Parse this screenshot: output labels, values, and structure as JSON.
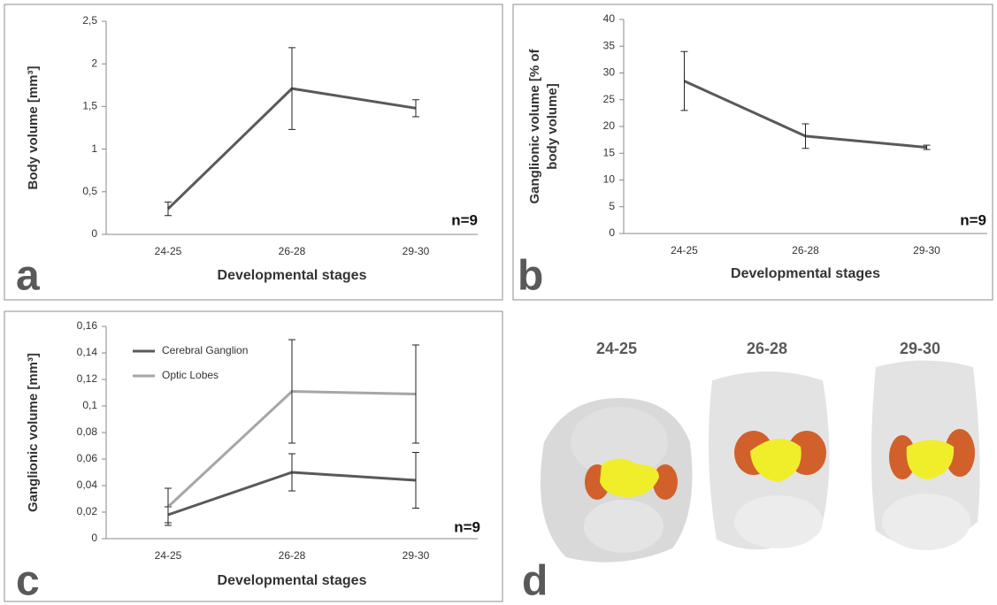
{
  "chart_data": [
    {
      "type": "line",
      "panel_label": "a",
      "ylabel": [
        "Body volume [mm³]"
      ],
      "xlabel": "Developmental stages",
      "annotation": "n=9",
      "categories": [
        "24-25",
        "26-28",
        "29-30"
      ],
      "series": [
        {
          "color": "#595959",
          "values": [
            0.3,
            1.71,
            1.48
          ],
          "errors": [
            0.08,
            0.48,
            0.1
          ]
        }
      ],
      "ylim": [
        0,
        2.5
      ],
      "yticks": [
        0,
        {
          "value": 0.5,
          "label": "0,5"
        },
        1,
        {
          "value": 1.5,
          "label": "1,5"
        },
        2,
        {
          "value": 2.5,
          "label": "2,5"
        }
      ]
    },
    {
      "type": "line",
      "panel_label": "b",
      "ylabel": [
        "Ganglionic volume [% of",
        "body volume]"
      ],
      "xlabel": "Developmental stages",
      "annotation": "n=9",
      "categories": [
        "24-25",
        "26-28",
        "29-30"
      ],
      "series": [
        {
          "color": "#595959",
          "values": [
            28.5,
            18.2,
            16.1
          ],
          "errors": [
            5.5,
            2.3,
            0.4
          ]
        }
      ],
      "ylim": [
        0,
        40
      ],
      "yticks": [
        0,
        5,
        10,
        15,
        20,
        25,
        30,
        35,
        40
      ]
    },
    {
      "type": "line",
      "panel_label": "c",
      "ylabel": [
        "Ganglionic volume [mm³]"
      ],
      "xlabel": "Developmental stages",
      "annotation": "n=9",
      "categories": [
        "24-25",
        "26-28",
        "29-30"
      ],
      "legend": "upper left",
      "series": [
        {
          "name": "Cerebral Ganglion",
          "color": "#595959",
          "values": [
            0.018,
            0.05,
            0.044
          ],
          "errors": [
            0.006,
            0.014,
            0.021
          ]
        },
        {
          "name": "Optic Lobes",
          "color": "#a6a6a6",
          "values": [
            0.024,
            0.111,
            0.109
          ],
          "errors": [
            0.014,
            0.039,
            0.037
          ]
        }
      ],
      "ylim": [
        0,
        0.16
      ],
      "yticks": [
        0,
        {
          "value": 0.02,
          "label": "0,02"
        },
        {
          "value": 0.04,
          "label": "0,04"
        },
        {
          "value": 0.06,
          "label": "0,06"
        },
        {
          "value": 0.08,
          "label": "0,08"
        },
        {
          "value": 0.1,
          "label": "0,1"
        },
        {
          "value": 0.12,
          "label": "0,12"
        },
        {
          "value": 0.14,
          "label": "0,14"
        },
        {
          "value": 0.16,
          "label": "0,16"
        }
      ]
    }
  ],
  "panel_d": {
    "panel_label": "d",
    "labels": [
      "24-25",
      "26-28",
      "29-30"
    ]
  }
}
